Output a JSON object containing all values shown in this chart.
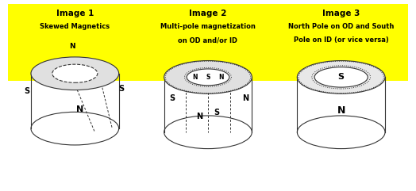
{
  "header_bg": "#FFFF00",
  "panel_bg": "#FFFFFF",
  "border_color": "#444444",
  "line_color": "#333333",
  "figsize": [
    5.24,
    2.41
  ],
  "dpi": 100,
  "headers": [
    [
      "Image 1",
      "Skewed Magnetics"
    ],
    [
      "Image 2",
      "Multi-pole magnetization",
      "on OD and/or ID"
    ],
    [
      "Image 3",
      "North Pole on OD and South",
      "Pole on ID (or vice versa)"
    ]
  ]
}
